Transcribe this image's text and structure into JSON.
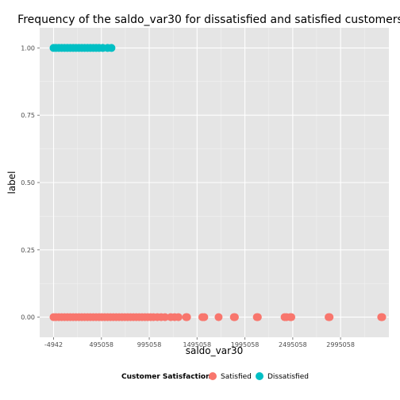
{
  "chart_data": {
    "type": "scatter",
    "title": "Frequency of the saldo_var30 for dissatisfied and satisfied customers",
    "xlabel": "saldo_var30",
    "ylabel": "label",
    "xlim": [
      -150000,
      3500000
    ],
    "ylim": [
      -0.075,
      1.075
    ],
    "x_ticks": [
      -4942,
      495058,
      995058,
      1495058,
      1995058,
      2495058,
      2995058
    ],
    "x_tick_labels": [
      "-4942",
      "495058",
      "995058",
      "1495058",
      "1995058",
      "2495058",
      "2995058"
    ],
    "y_ticks": [
      0.0,
      0.25,
      0.5,
      0.75,
      1.0
    ],
    "y_tick_labels": [
      "0.00",
      "0.25",
      "0.50",
      "0.75",
      "1.00"
    ],
    "grid": true,
    "legend": {
      "title": "Customer Satisfaction",
      "position": "bottom",
      "entries": [
        "Satisfied",
        "Dissatisfied"
      ]
    },
    "series": [
      {
        "name": "Satisfied",
        "color": "#f8766d",
        "y": 0,
        "x": [
          -4942,
          20000,
          50000,
          80000,
          110000,
          140000,
          170000,
          200000,
          230000,
          260000,
          290000,
          320000,
          350000,
          380000,
          410000,
          440000,
          470000,
          500000,
          530000,
          560000,
          590000,
          620000,
          650000,
          680000,
          710000,
          740000,
          770000,
          800000,
          830000,
          860000,
          890000,
          920000,
          950000,
          980000,
          1010000,
          1040000,
          1080000,
          1120000,
          1160000,
          1220000,
          1260000,
          1300000,
          1380000,
          1390000,
          1550000,
          1570000,
          1720000,
          1880000,
          1890000,
          2120000,
          2130000,
          2410000,
          2430000,
          2470000,
          2480000,
          2870000,
          2880000,
          3420000,
          3430000
        ]
      },
      {
        "name": "Dissatisfied",
        "color": "#00bfc4",
        "y": 1,
        "x": [
          -4942,
          20000,
          50000,
          80000,
          110000,
          140000,
          170000,
          200000,
          230000,
          260000,
          290000,
          320000,
          350000,
          380000,
          410000,
          440000,
          470000,
          510000,
          560000,
          600000
        ]
      }
    ]
  }
}
